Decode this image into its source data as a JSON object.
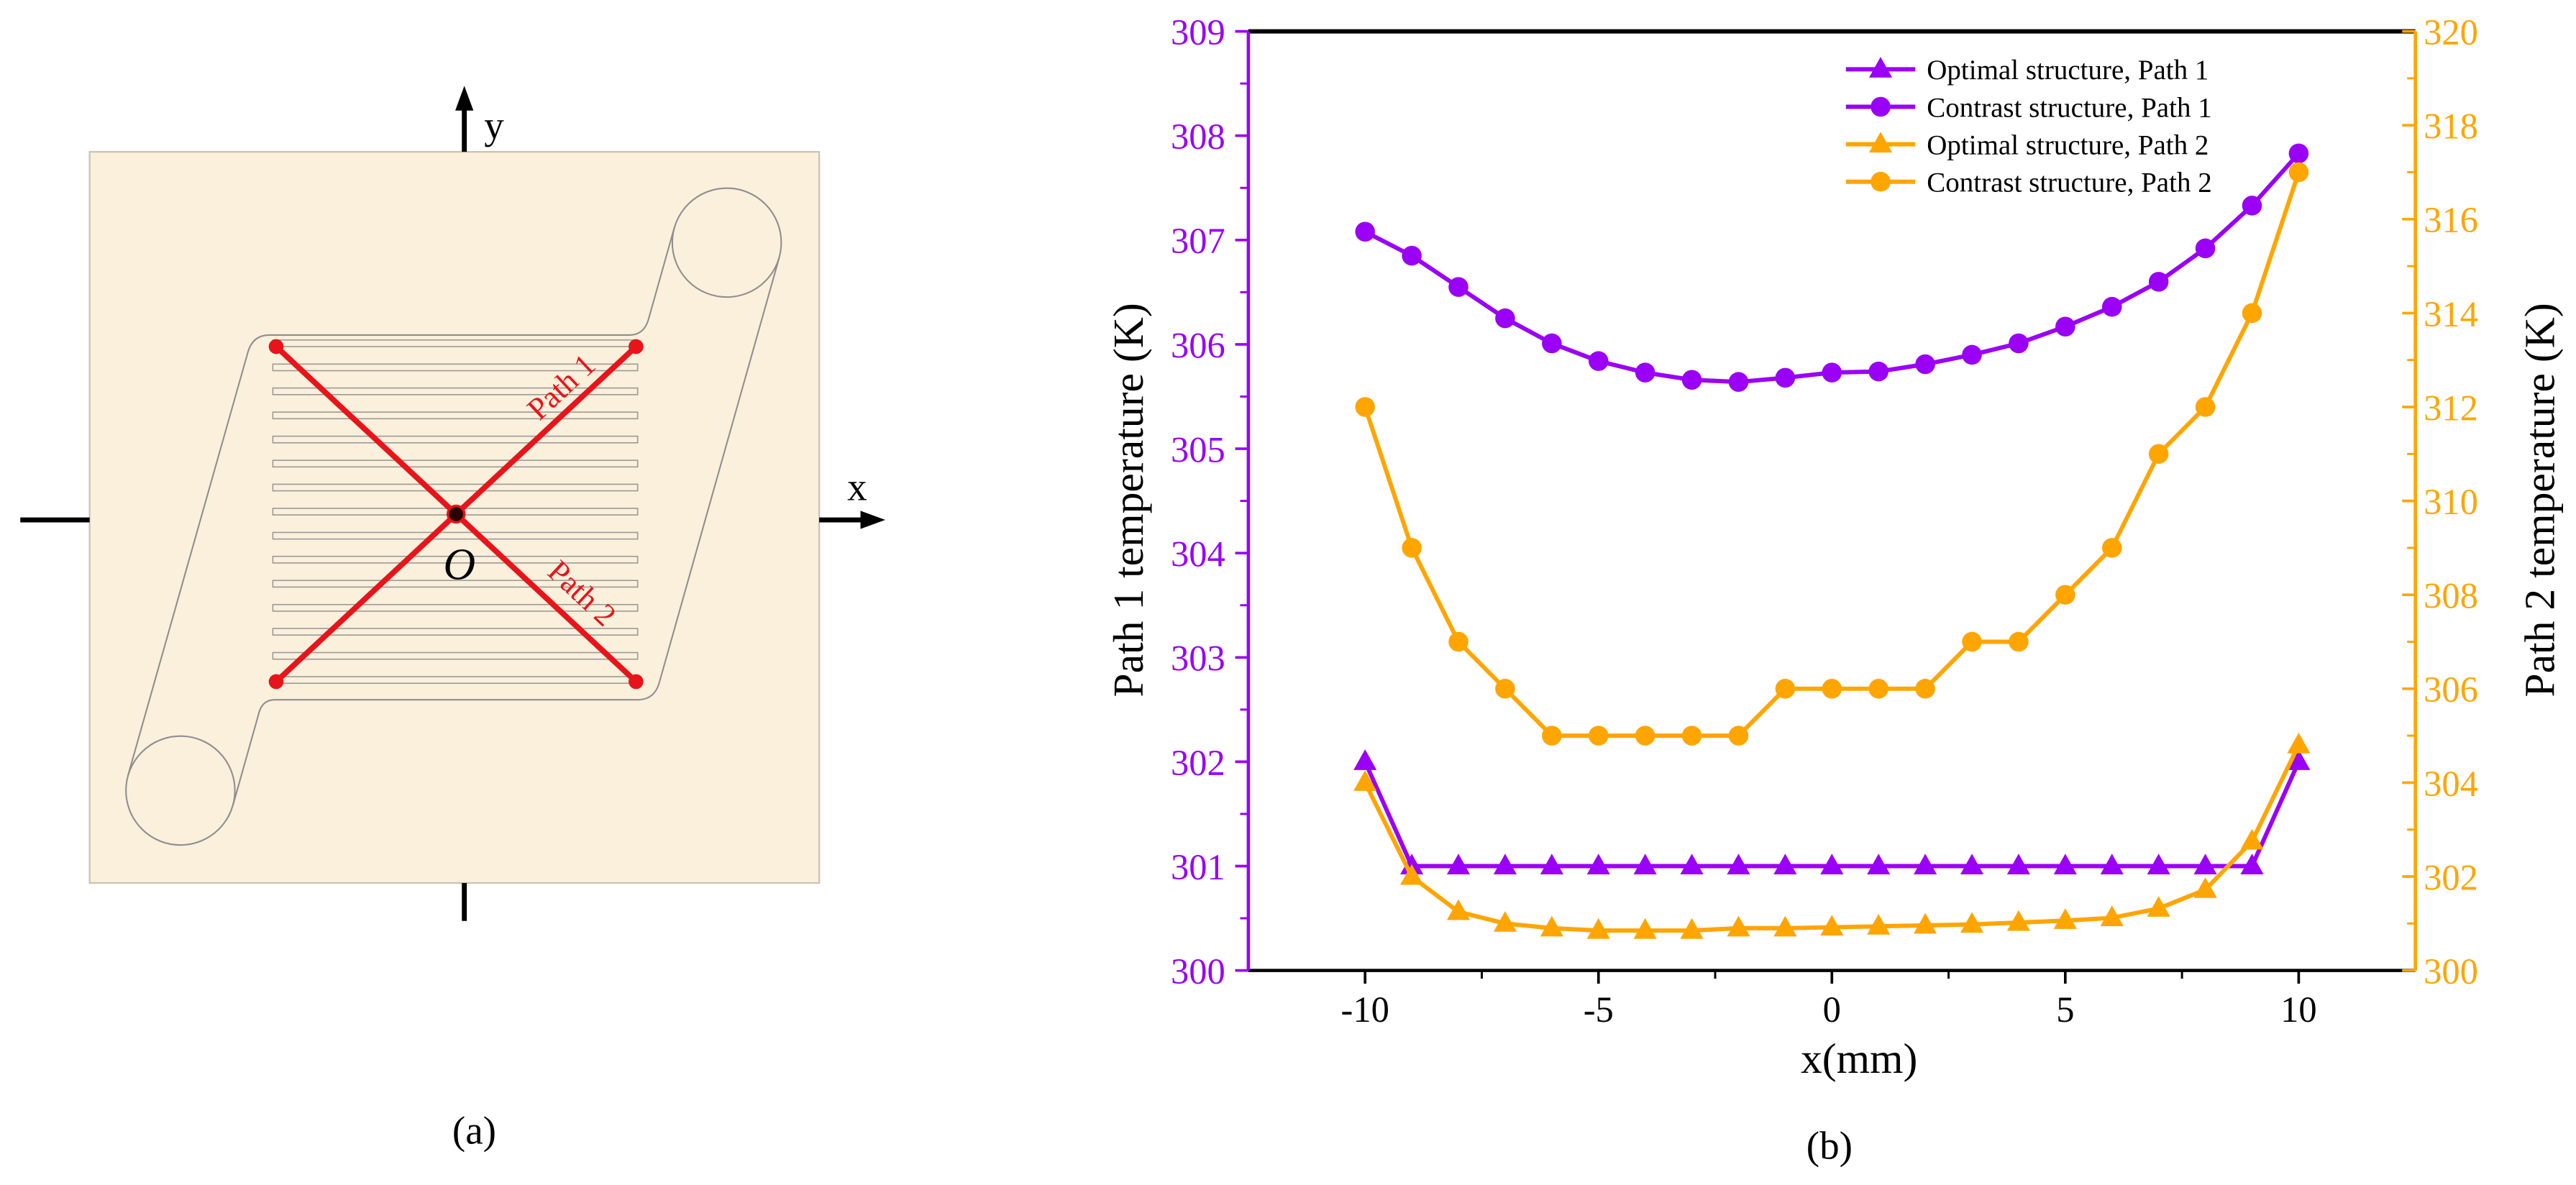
{
  "colors": {
    "path1": "#9A00F5",
    "path2": "#FFA500",
    "path_lines": "#E8141B",
    "plate": "#FBF0DC"
  },
  "panel_a": {
    "caption": "(a)",
    "x_axis_label": "x",
    "y_axis_label": "y",
    "origin_label": "O",
    "path1_label": "Path 1",
    "path2_label": "Path 2"
  },
  "panel_b": {
    "caption": "(b)"
  },
  "chart_data": {
    "type": "line",
    "xlabel": "x(mm)",
    "ylabel": "Path 1 temperature (K)",
    "y2label": "Path 2 temperature (K)",
    "xlim": [
      -12.5,
      12.5
    ],
    "ylim": [
      300,
      309
    ],
    "y2lim": [
      300,
      320
    ],
    "x_ticks": [
      -10,
      -5,
      0,
      5,
      10
    ],
    "y_ticks": [
      300,
      301,
      302,
      303,
      304,
      305,
      306,
      307,
      308,
      309
    ],
    "y2_ticks": [
      300,
      302,
      304,
      306,
      308,
      310,
      312,
      314,
      316,
      318,
      320
    ],
    "grid": false,
    "legend_position": "top-right",
    "x": [
      -10,
      -9,
      -8,
      -7,
      -6,
      -5,
      -4,
      -3,
      -2,
      -1,
      0,
      1,
      2,
      3,
      4,
      5,
      6,
      7,
      8,
      9,
      10
    ],
    "series": [
      {
        "name": "Optimal structure, Path 1",
        "y_axis": 1,
        "marker_icon": "triangle-icon",
        "color": "#9A00F5",
        "values": [
          302.0,
          301.0,
          301.0,
          301.0,
          301.0,
          301.0,
          301.0,
          301.0,
          301.0,
          301.0,
          301.0,
          301.0,
          301.0,
          301.0,
          301.0,
          301.0,
          301.0,
          301.0,
          301.0,
          301.0,
          302.0
        ]
      },
      {
        "name": "Contrast structure, Path 1",
        "y_axis": 1,
        "marker_icon": "circle-icon",
        "color": "#9A00F5",
        "values": [
          307.08,
          306.85,
          306.55,
          306.25,
          306.01,
          305.84,
          305.73,
          305.66,
          305.64,
          305.68,
          305.73,
          305.74,
          305.81,
          305.9,
          306.01,
          306.17,
          306.36,
          306.6,
          306.92,
          307.33,
          307.83
        ]
      },
      {
        "name": "Optimal structure, Path 2",
        "y_axis": 2,
        "marker_icon": "triangle-icon",
        "color": "#FFA500",
        "values": [
          304.0,
          302.0,
          301.25,
          301.0,
          300.9,
          300.85,
          300.85,
          300.85,
          300.9,
          300.9,
          300.92,
          300.94,
          300.96,
          300.98,
          301.02,
          301.06,
          301.12,
          301.32,
          301.72,
          302.75,
          304.8
        ]
      },
      {
        "name": "Contrast structure, Path 2",
        "y_axis": 2,
        "marker_icon": "circle-icon",
        "color": "#FFA500",
        "values": [
          312,
          309,
          307,
          306,
          305,
          305,
          305,
          305,
          305,
          306,
          306,
          306,
          306,
          307,
          307,
          308,
          309,
          311,
          312,
          314,
          317
        ]
      }
    ]
  }
}
